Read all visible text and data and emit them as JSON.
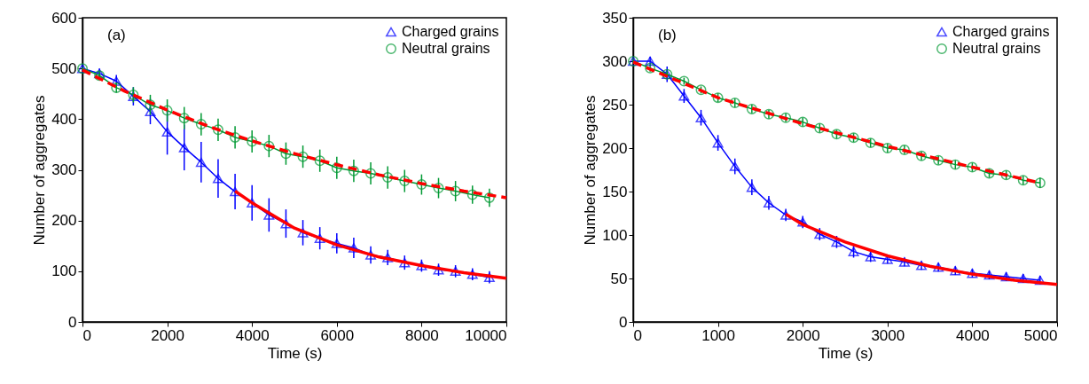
{
  "chart_data": [
    {
      "type": "line",
      "xlabel": "Time (s)",
      "ylabel": "Number of aggregates",
      "annotations": [
        "(a)"
      ],
      "xlim": [
        0,
        10000
      ],
      "xticks": [
        0,
        2000,
        4000,
        6000,
        8000,
        10000
      ],
      "ylim": [
        0,
        600
      ],
      "yticks": [
        0,
        100,
        200,
        300,
        400,
        500,
        600
      ],
      "legend": "top right",
      "x": [
        0,
        400,
        800,
        1200,
        1600,
        2000,
        2400,
        2800,
        3200,
        3600,
        4000,
        4400,
        4800,
        5200,
        5600,
        6000,
        6400,
        6800,
        7200,
        7600,
        8000,
        8400,
        8800,
        9200,
        9600
      ],
      "series": [
        {
          "name": "Charged grains",
          "color": "#0000ff",
          "marker": "triangle",
          "values": [
            500,
            490,
            475,
            445,
            415,
            375,
            344,
            315,
            283,
            257,
            235,
            211,
            194,
            176,
            165,
            155,
            146,
            132,
            127,
            117,
            111,
            103,
            100,
            94,
            88
          ],
          "errors": [
            5,
            10,
            12,
            18,
            25,
            45,
            45,
            40,
            38,
            35,
            35,
            33,
            28,
            25,
            22,
            20,
            20,
            17,
            15,
            14,
            12,
            12,
            12,
            12,
            12
          ]
        },
        {
          "name": "Neutral grains",
          "color": "#009933",
          "marker": "circle",
          "values": [
            500,
            486,
            462,
            448,
            428,
            417,
            402,
            390,
            379,
            364,
            356,
            347,
            332,
            326,
            318,
            304,
            298,
            293,
            285,
            278,
            271,
            264,
            258,
            251,
            245
          ],
          "errors": [
            3,
            8,
            10,
            15,
            20,
            22,
            22,
            22,
            22,
            22,
            22,
            22,
            22,
            22,
            22,
            22,
            22,
            22,
            22,
            22,
            20,
            20,
            20,
            18,
            18
          ]
        },
        {
          "type": "line",
          "color": "#ff0000",
          "marker": "none",
          "line_style": "solid",
          "x": [
            3600,
            4000,
            5000,
            6000,
            7000,
            8000,
            9000,
            10000
          ],
          "values": [
            258,
            235,
            185,
            152,
            128,
            111,
            97,
            86
          ]
        },
        {
          "type": "line",
          "color": "#ff0000",
          "marker": "none",
          "line_style": "dashed",
          "x": [
            0,
            1000,
            2000,
            3000,
            4000,
            5000,
            6000,
            7000,
            8000,
            9000,
            10000
          ],
          "values": [
            497,
            455,
            418,
            385,
            357,
            332,
            310,
            290,
            273,
            258,
            245
          ]
        }
      ]
    },
    {
      "type": "line",
      "xlabel": "Time (s)",
      "ylabel": "Number of aggregates",
      "annotations": [
        "(b)"
      ],
      "xlim": [
        0,
        5000
      ],
      "xticks": [
        0,
        1000,
        2000,
        3000,
        4000,
        5000
      ],
      "ylim": [
        0,
        350
      ],
      "yticks": [
        0,
        50,
        100,
        150,
        200,
        250,
        300,
        350
      ],
      "legend": "top right",
      "x": [
        0,
        200,
        400,
        600,
        800,
        1000,
        1200,
        1400,
        1600,
        1800,
        2000,
        2200,
        2400,
        2600,
        2800,
        3000,
        3200,
        3400,
        3600,
        3800,
        4000,
        4200,
        4400,
        4600,
        4800
      ],
      "series": [
        {
          "name": "Charged grains",
          "color": "#0000ff",
          "marker": "triangle",
          "values": [
            300,
            300,
            285,
            260,
            235,
            206,
            179,
            155,
            137,
            123,
            115,
            101,
            92,
            81,
            75,
            72,
            69,
            65,
            63,
            59,
            56,
            54,
            52,
            50,
            48
          ],
          "errors": [
            3,
            5,
            9,
            8,
            9,
            9,
            9,
            9,
            8,
            7,
            7,
            7,
            7,
            7,
            6,
            5,
            5,
            5,
            5,
            5,
            5,
            5,
            5,
            5,
            5
          ]
        },
        {
          "name": "Neutral grains",
          "color": "#009933",
          "marker": "circle",
          "values": [
            300,
            292,
            285,
            277,
            267,
            258,
            252,
            245,
            239,
            235,
            230,
            223,
            216,
            212,
            206,
            200,
            198,
            191,
            186,
            181,
            178,
            171,
            169,
            163,
            160
          ],
          "errors": [
            3,
            4,
            4,
            4,
            4,
            5,
            5,
            5,
            5,
            5,
            5,
            5,
            5,
            5,
            5,
            5,
            5,
            5,
            5,
            5,
            5,
            5,
            5,
            5,
            6
          ]
        },
        {
          "type": "line",
          "color": "#ff0000",
          "marker": "none",
          "line_style": "solid",
          "x": [
            1800,
            2000,
            2500,
            3000,
            3500,
            4000,
            4500,
            5000
          ],
          "values": [
            124,
            112,
            92,
            76,
            64,
            55,
            48,
            43
          ]
        },
        {
          "type": "line",
          "color": "#ff0000",
          "marker": "none",
          "line_style": "dashed",
          "x": [
            0,
            1000,
            2000,
            3000,
            4000,
            4800
          ],
          "values": [
            299,
            258,
            228,
            202,
            178,
            160
          ]
        }
      ]
    }
  ]
}
